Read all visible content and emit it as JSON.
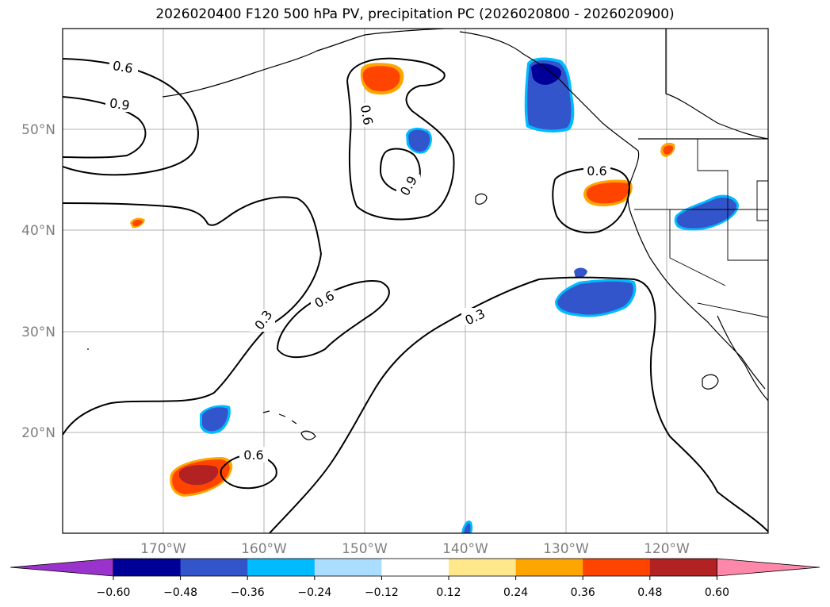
{
  "title": "2026020400 F120 500 hPa PV, precipitation PC (2026020800 - 2026020900)",
  "lon_labels": [
    "170°W",
    "160°W",
    "150°W",
    "140°W",
    "130°W",
    "120°W"
  ],
  "lat_labels": [
    "50°N",
    "40°N",
    "30°N",
    "20°N"
  ],
  "colorbar": {
    "labels": [
      "−0.60",
      "−0.48",
      "−0.36",
      "−0.24",
      "−0.12",
      "0.12",
      "0.24",
      "0.36",
      "0.48",
      "0.60"
    ],
    "colors": {
      "under": "#9933cc",
      "bins": [
        "#000099",
        "#3355cc",
        "#00bbff",
        "#aaddff",
        "#ffffff",
        "#ffe88c",
        "#ffa500",
        "#ff4400",
        "#b22222"
      ],
      "over": "#ff88aa"
    }
  },
  "contour_labels": {
    "nw_06": "0.6",
    "nw_09": "0.9",
    "c_06": "0.6",
    "c_09": "0.9",
    "ne_06": "0.6",
    "mid_03a": "0.3",
    "mid_06": "0.6",
    "mid_03b": "0.3",
    "s_06": "0.6"
  },
  "colors": {
    "contour": "#000000",
    "coast": "#000000",
    "grid": "#b0b0b0",
    "positive_core": "#ff4400",
    "positive_strong": "#b22222",
    "positive_edge": "#ffa500",
    "negative_core": "#3355cc",
    "negative_strong": "#000099",
    "negative_edge": "#00bbff"
  }
}
